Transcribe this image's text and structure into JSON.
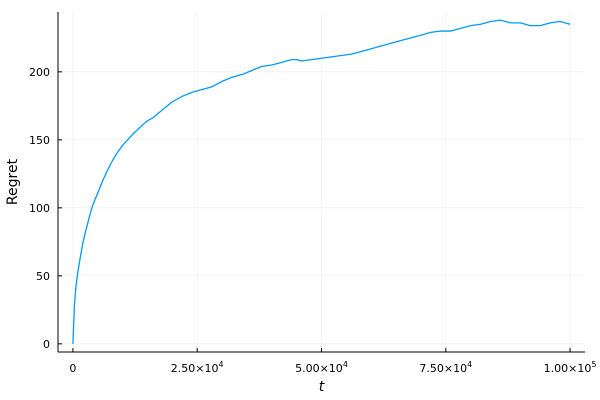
{
  "chart_data": {
    "type": "line",
    "xlabel": "t",
    "ylabel": "Regret",
    "xlim": [
      -3000,
      103000
    ],
    "ylim": [
      -6,
      244
    ],
    "grid": true,
    "x_ticks": [
      {
        "value": 0,
        "label": "0"
      },
      {
        "value": 25000,
        "label": "2.50×10",
        "exp": "4"
      },
      {
        "value": 50000,
        "label": "5.00×10",
        "exp": "4"
      },
      {
        "value": 75000,
        "label": "7.50×10",
        "exp": "4"
      },
      {
        "value": 100000,
        "label": "1.00×10",
        "exp": "5"
      }
    ],
    "y_ticks": [
      0,
      50,
      100,
      150,
      200
    ],
    "series": [
      {
        "color": "#009AFA",
        "x": [
          0,
          300,
          600,
          1000,
          1500,
          2000,
          2500,
          3000,
          3500,
          4000,
          5000,
          6000,
          7000,
          8000,
          9000,
          10000,
          12000,
          14000,
          15000,
          16000,
          18000,
          20000,
          22000,
          24000,
          25000,
          26000,
          28000,
          30000,
          32000,
          34000,
          36000,
          38000,
          40000,
          42000,
          44000,
          45000,
          46000,
          48000,
          50000,
          52000,
          54000,
          56000,
          58000,
          60000,
          62000,
          64000,
          66000,
          68000,
          70000,
          72000,
          74000,
          76000,
          78000,
          80000,
          82000,
          84000,
          86000,
          88000,
          90000,
          92000,
          94000,
          96000,
          98000,
          100000
        ],
        "y": [
          0,
          28,
          42,
          53,
          64,
          74,
          82,
          89,
          96,
          102,
          111,
          120,
          128,
          135,
          141,
          146,
          154,
          161,
          164,
          166,
          172,
          178,
          182,
          185,
          186,
          187,
          189,
          193,
          196,
          198,
          201,
          204,
          205,
          207,
          209,
          209,
          208,
          209,
          210,
          211,
          212,
          213,
          215,
          217,
          219,
          221,
          223,
          225,
          227,
          229,
          230,
          230,
          232,
          234,
          235,
          237,
          238,
          236,
          236,
          234,
          234,
          236,
          237,
          235
        ]
      }
    ]
  }
}
